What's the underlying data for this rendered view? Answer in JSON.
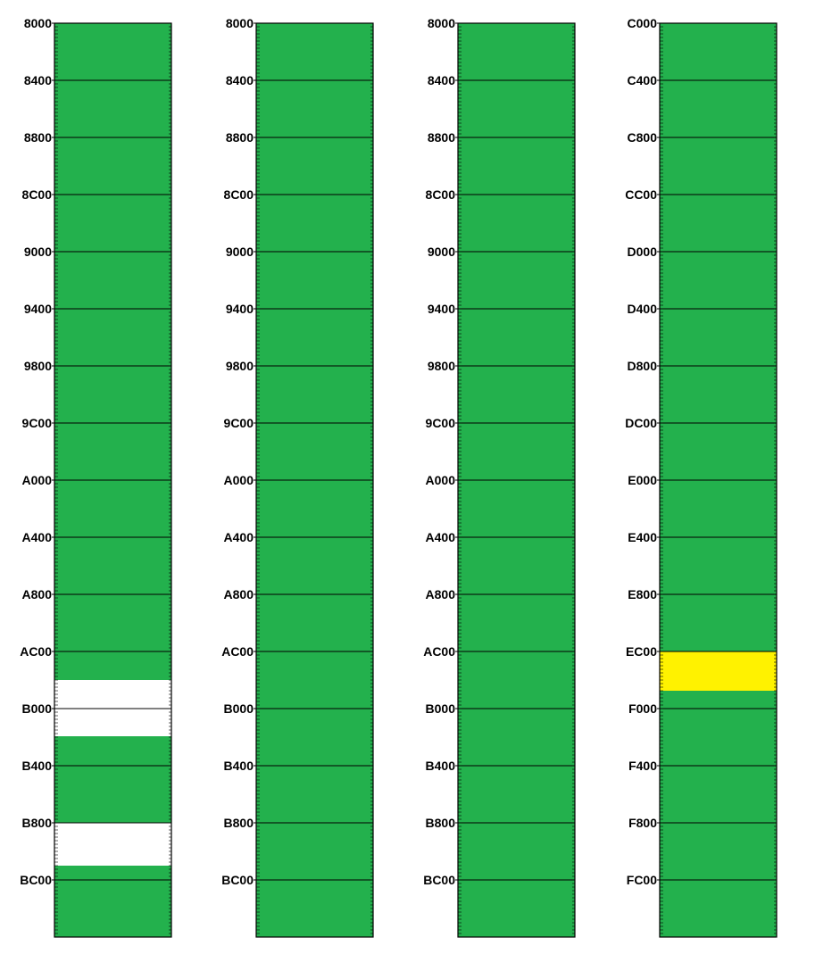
{
  "colors": {
    "used": "#23b14d",
    "free": "#ffffff",
    "highlight": "#fff200",
    "line": "#000000"
  },
  "memory_maps": [
    {
      "labels": [
        "8000",
        "8400",
        "8800",
        "8C00",
        "9000",
        "9400",
        "9800",
        "9C00",
        "A000",
        "A400",
        "A800",
        "AC00",
        "B000",
        "B400",
        "B800",
        "BC00"
      ],
      "regions": [
        {
          "kind": "free",
          "start": "AE00",
          "end": "B1F0"
        },
        {
          "kind": "free",
          "start": "B800",
          "end": "BB00"
        }
      ]
    },
    {
      "labels": [
        "8000",
        "8400",
        "8800",
        "8C00",
        "9000",
        "9400",
        "9800",
        "9C00",
        "A000",
        "A400",
        "A800",
        "AC00",
        "B000",
        "B400",
        "B800",
        "BC00"
      ],
      "regions": []
    },
    {
      "labels": [
        "8000",
        "8400",
        "8800",
        "8C00",
        "9000",
        "9400",
        "9800",
        "9C00",
        "A000",
        "A400",
        "A800",
        "AC00",
        "B000",
        "B400",
        "B800",
        "BC00"
      ],
      "regions": []
    },
    {
      "labels": [
        "C000",
        "C400",
        "C800",
        "CC00",
        "D000",
        "D400",
        "D800",
        "DC00",
        "E000",
        "E400",
        "E800",
        "EC00",
        "F000",
        "F400",
        "F800",
        "FC00"
      ],
      "regions": [
        {
          "kind": "highlight",
          "start": "EC00",
          "end": "EEC0"
        }
      ]
    }
  ]
}
